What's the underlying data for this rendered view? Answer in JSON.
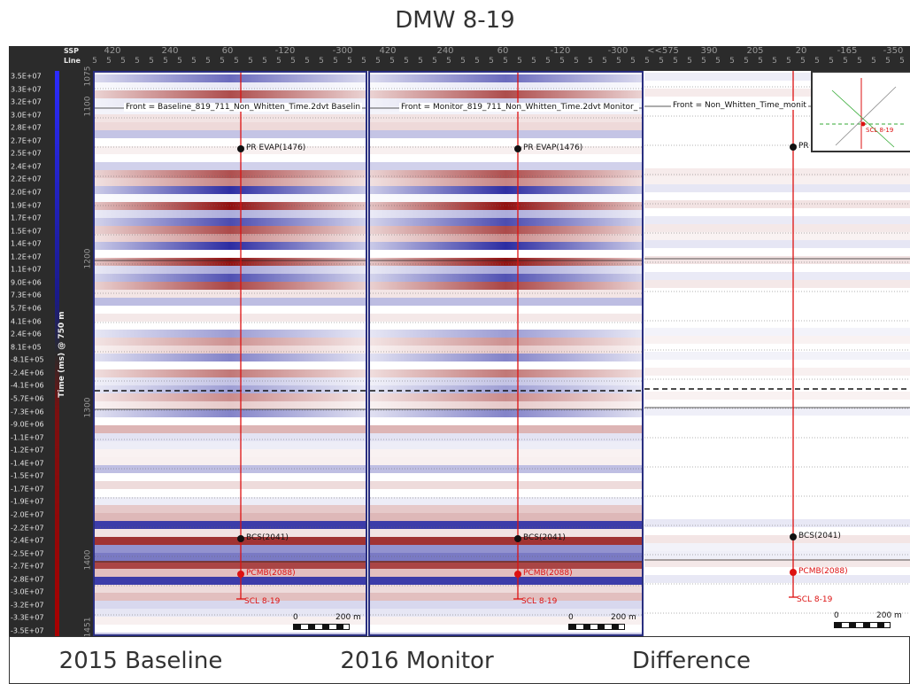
{
  "title": "DMW 8-19",
  "header": {
    "ssp_label": "SSP",
    "line_label": "Line"
  },
  "ssp_ticks": {
    "baseline": [
      "420",
      "240",
      "60",
      "-120",
      "-300"
    ],
    "monitor": [
      "420",
      "240",
      "60",
      "-120",
      "-300"
    ],
    "difference": [
      "<<575",
      "390",
      "205",
      "20",
      "-165",
      "-350"
    ]
  },
  "line_number": "5",
  "amplitude_scale": [
    "3.5E+07",
    "3.3E+07",
    "3.2E+07",
    "3.0E+07",
    "2.8E+07",
    "2.7E+07",
    "2.5E+07",
    "2.4E+07",
    "2.2E+07",
    "2.0E+07",
    "1.9E+07",
    "1.7E+07",
    "1.5E+07",
    "1.4E+07",
    "1.2E+07",
    "1.1E+07",
    "9.0E+06",
    "7.3E+06",
    "5.7E+06",
    "4.1E+06",
    "2.4E+06",
    "8.1E+05",
    "-8.1E+05",
    "-2.4E+06",
    "-4.1E+06",
    "-5.7E+06",
    "-7.3E+06",
    "-9.0E+06",
    "-1.1E+07",
    "-1.2E+07",
    "-1.4E+07",
    "-1.5E+07",
    "-1.7E+07",
    "-1.9E+07",
    "-2.0E+07",
    "-2.2E+07",
    "-2.4E+07",
    "-2.5E+07",
    "-2.7E+07",
    "-2.8E+07",
    "-3.0E+07",
    "-3.2E+07",
    "-3.3E+07",
    "-3.5E+07"
  ],
  "time_axis": {
    "label": "Time (ms) @ 750 m",
    "ticks": [
      "1075",
      "1100",
      "1200",
      "1300",
      "1400",
      "1451"
    ]
  },
  "panels": [
    {
      "front_label": "Front = Baseline_819_711_Non_Whitten_Time.2dvt  Baselin",
      "mute": false
    },
    {
      "front_label": "Front = Monitor_819_711_Non_Whitten_Time.2dvt  Monitor_",
      "mute": false
    },
    {
      "front_label": "Front = Non_Whitten_Time_monit",
      "mute": true
    }
  ],
  "markers": {
    "pr_evap": "PR EVAP(1476)",
    "pr_short": "PR",
    "bcs": "BCS(2041)",
    "pcmb": "PCMB(2088)",
    "well": "SCL 8-19"
  },
  "scale_bar": {
    "zero": "0",
    "length": "200 m"
  },
  "minimap": {
    "well_label": "SCL 8-19"
  },
  "bottom_labels": [
    "2015 Baseline",
    "2016 Monitor",
    "Difference"
  ],
  "colors": {
    "positive": "#1a1a9a",
    "negative": "#8a0000",
    "well": "#dd1111",
    "panel_border": "#2a2f80"
  }
}
